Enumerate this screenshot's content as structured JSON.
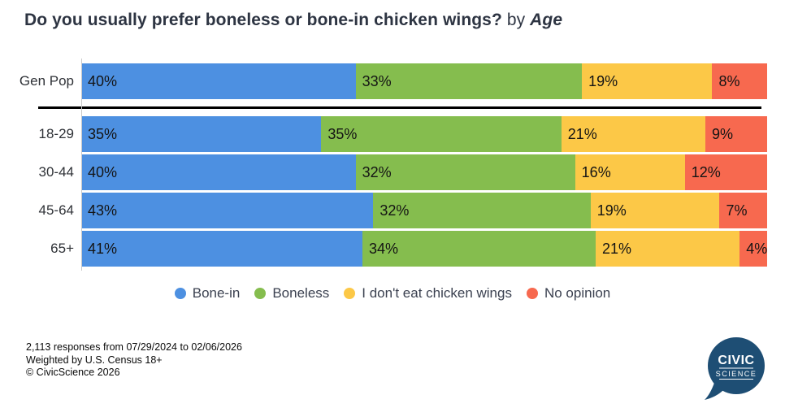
{
  "title": {
    "main": "Do you usually prefer boneless or bone-in chicken wings?",
    "connector": "by",
    "emphasis": "Age"
  },
  "chart_data": {
    "type": "bar",
    "orientation": "horizontal",
    "stacked": true,
    "unit": "%",
    "value_labels": "inside-start",
    "legend_position": "bottom",
    "categories": [
      "Gen Pop",
      "18-29",
      "30-44",
      "45-64",
      "65+"
    ],
    "series": [
      {
        "name": "Bone-in",
        "color": "#4D90E1",
        "values": [
          40,
          35,
          40,
          43,
          41
        ]
      },
      {
        "name": "Boneless",
        "color": "#85BD4E",
        "values": [
          33,
          35,
          32,
          32,
          34
        ]
      },
      {
        "name": "I don't eat chicken wings",
        "color": "#FCC847",
        "values": [
          19,
          21,
          16,
          19,
          21
        ]
      },
      {
        "name": "No opinion",
        "color": "#F7694F",
        "values": [
          8,
          9,
          12,
          7,
          4
        ]
      }
    ],
    "separator_after_category": "Gen Pop"
  },
  "footer": {
    "line1": "2,113 responses from 07/29/2024 to 02/06/2026",
    "line2": "Weighted by U.S. Census 18+",
    "line3": "© CivicScience 2026"
  },
  "logo": {
    "line1": "CIVIC",
    "line2": "SCIENCE",
    "color": "#1E4E74"
  }
}
